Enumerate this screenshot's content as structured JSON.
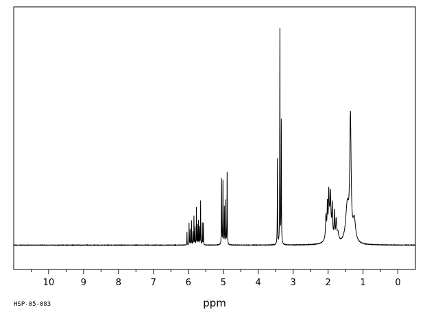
{
  "chart_data": {
    "type": "line",
    "title": "",
    "xlabel": "ppm",
    "ylabel": "",
    "x_reversed": true,
    "xlim": [
      11.0,
      -0.5
    ],
    "ylim": [
      0,
      100
    ],
    "grid": false,
    "x_ticks": [
      10,
      9,
      8,
      7,
      6,
      5,
      4,
      3,
      2,
      1,
      0
    ],
    "x_tick_labels": [
      "10",
      "9",
      "8",
      "7",
      "6",
      "5",
      "4",
      "3",
      "2",
      "1",
      "0"
    ],
    "spectrum_code": "HSP-05-083",
    "series": [
      {
        "peaks": [
          {
            "ppm": 6.04,
            "height": 6,
            "width": 0.008
          },
          {
            "ppm": 5.98,
            "height": 10,
            "width": 0.008
          },
          {
            "ppm": 5.95,
            "height": 7,
            "width": 0.008
          },
          {
            "ppm": 5.91,
            "height": 11,
            "width": 0.008
          },
          {
            "ppm": 5.87,
            "height": 6,
            "width": 0.008
          },
          {
            "ppm": 5.84,
            "height": 13,
            "width": 0.008
          },
          {
            "ppm": 5.81,
            "height": 8,
            "width": 0.008
          },
          {
            "ppm": 5.77,
            "height": 17,
            "width": 0.008
          },
          {
            "ppm": 5.74,
            "height": 9,
            "width": 0.008
          },
          {
            "ppm": 5.71,
            "height": 11,
            "width": 0.008
          },
          {
            "ppm": 5.68,
            "height": 8,
            "width": 0.008
          },
          {
            "ppm": 5.65,
            "height": 20,
            "width": 0.008
          },
          {
            "ppm": 5.6,
            "height": 10,
            "width": 0.008
          },
          {
            "ppm": 5.57,
            "height": 10,
            "width": 0.008
          },
          {
            "ppm": 5.05,
            "height": 30,
            "width": 0.01
          },
          {
            "ppm": 5.01,
            "height": 29,
            "width": 0.01
          },
          {
            "ppm": 4.97,
            "height": 17,
            "width": 0.01
          },
          {
            "ppm": 4.93,
            "height": 20,
            "width": 0.01
          },
          {
            "ppm": 4.89,
            "height": 33,
            "width": 0.01
          },
          {
            "ppm": 3.45,
            "height": 39,
            "width": 0.01
          },
          {
            "ppm": 3.38,
            "height": 98,
            "width": 0.01
          },
          {
            "ppm": 3.34,
            "height": 56,
            "width": 0.01
          },
          {
            "ppm": 2.06,
            "height": 10,
            "width": 0.03
          },
          {
            "ppm": 2.02,
            "height": 13,
            "width": 0.02
          },
          {
            "ppm": 1.98,
            "height": 14,
            "width": 0.02
          },
          {
            "ppm": 1.93,
            "height": 12,
            "width": 0.02
          },
          {
            "ppm": 1.88,
            "height": 13,
            "width": 0.02
          },
          {
            "ppm": 1.82,
            "height": 12,
            "width": 0.02
          },
          {
            "ppm": 1.77,
            "height": 9,
            "width": 0.03
          },
          {
            "ppm": 1.95,
            "height": 13,
            "width": 0.12
          },
          {
            "ppm": 1.72,
            "height": 4,
            "width": 0.06
          },
          {
            "ppm": 1.36,
            "height": 55,
            "width": 0.045
          },
          {
            "ppm": 1.45,
            "height": 17,
            "width": 0.11
          },
          {
            "ppm": 1.25,
            "height": 10,
            "width": 0.09
          }
        ]
      }
    ]
  }
}
